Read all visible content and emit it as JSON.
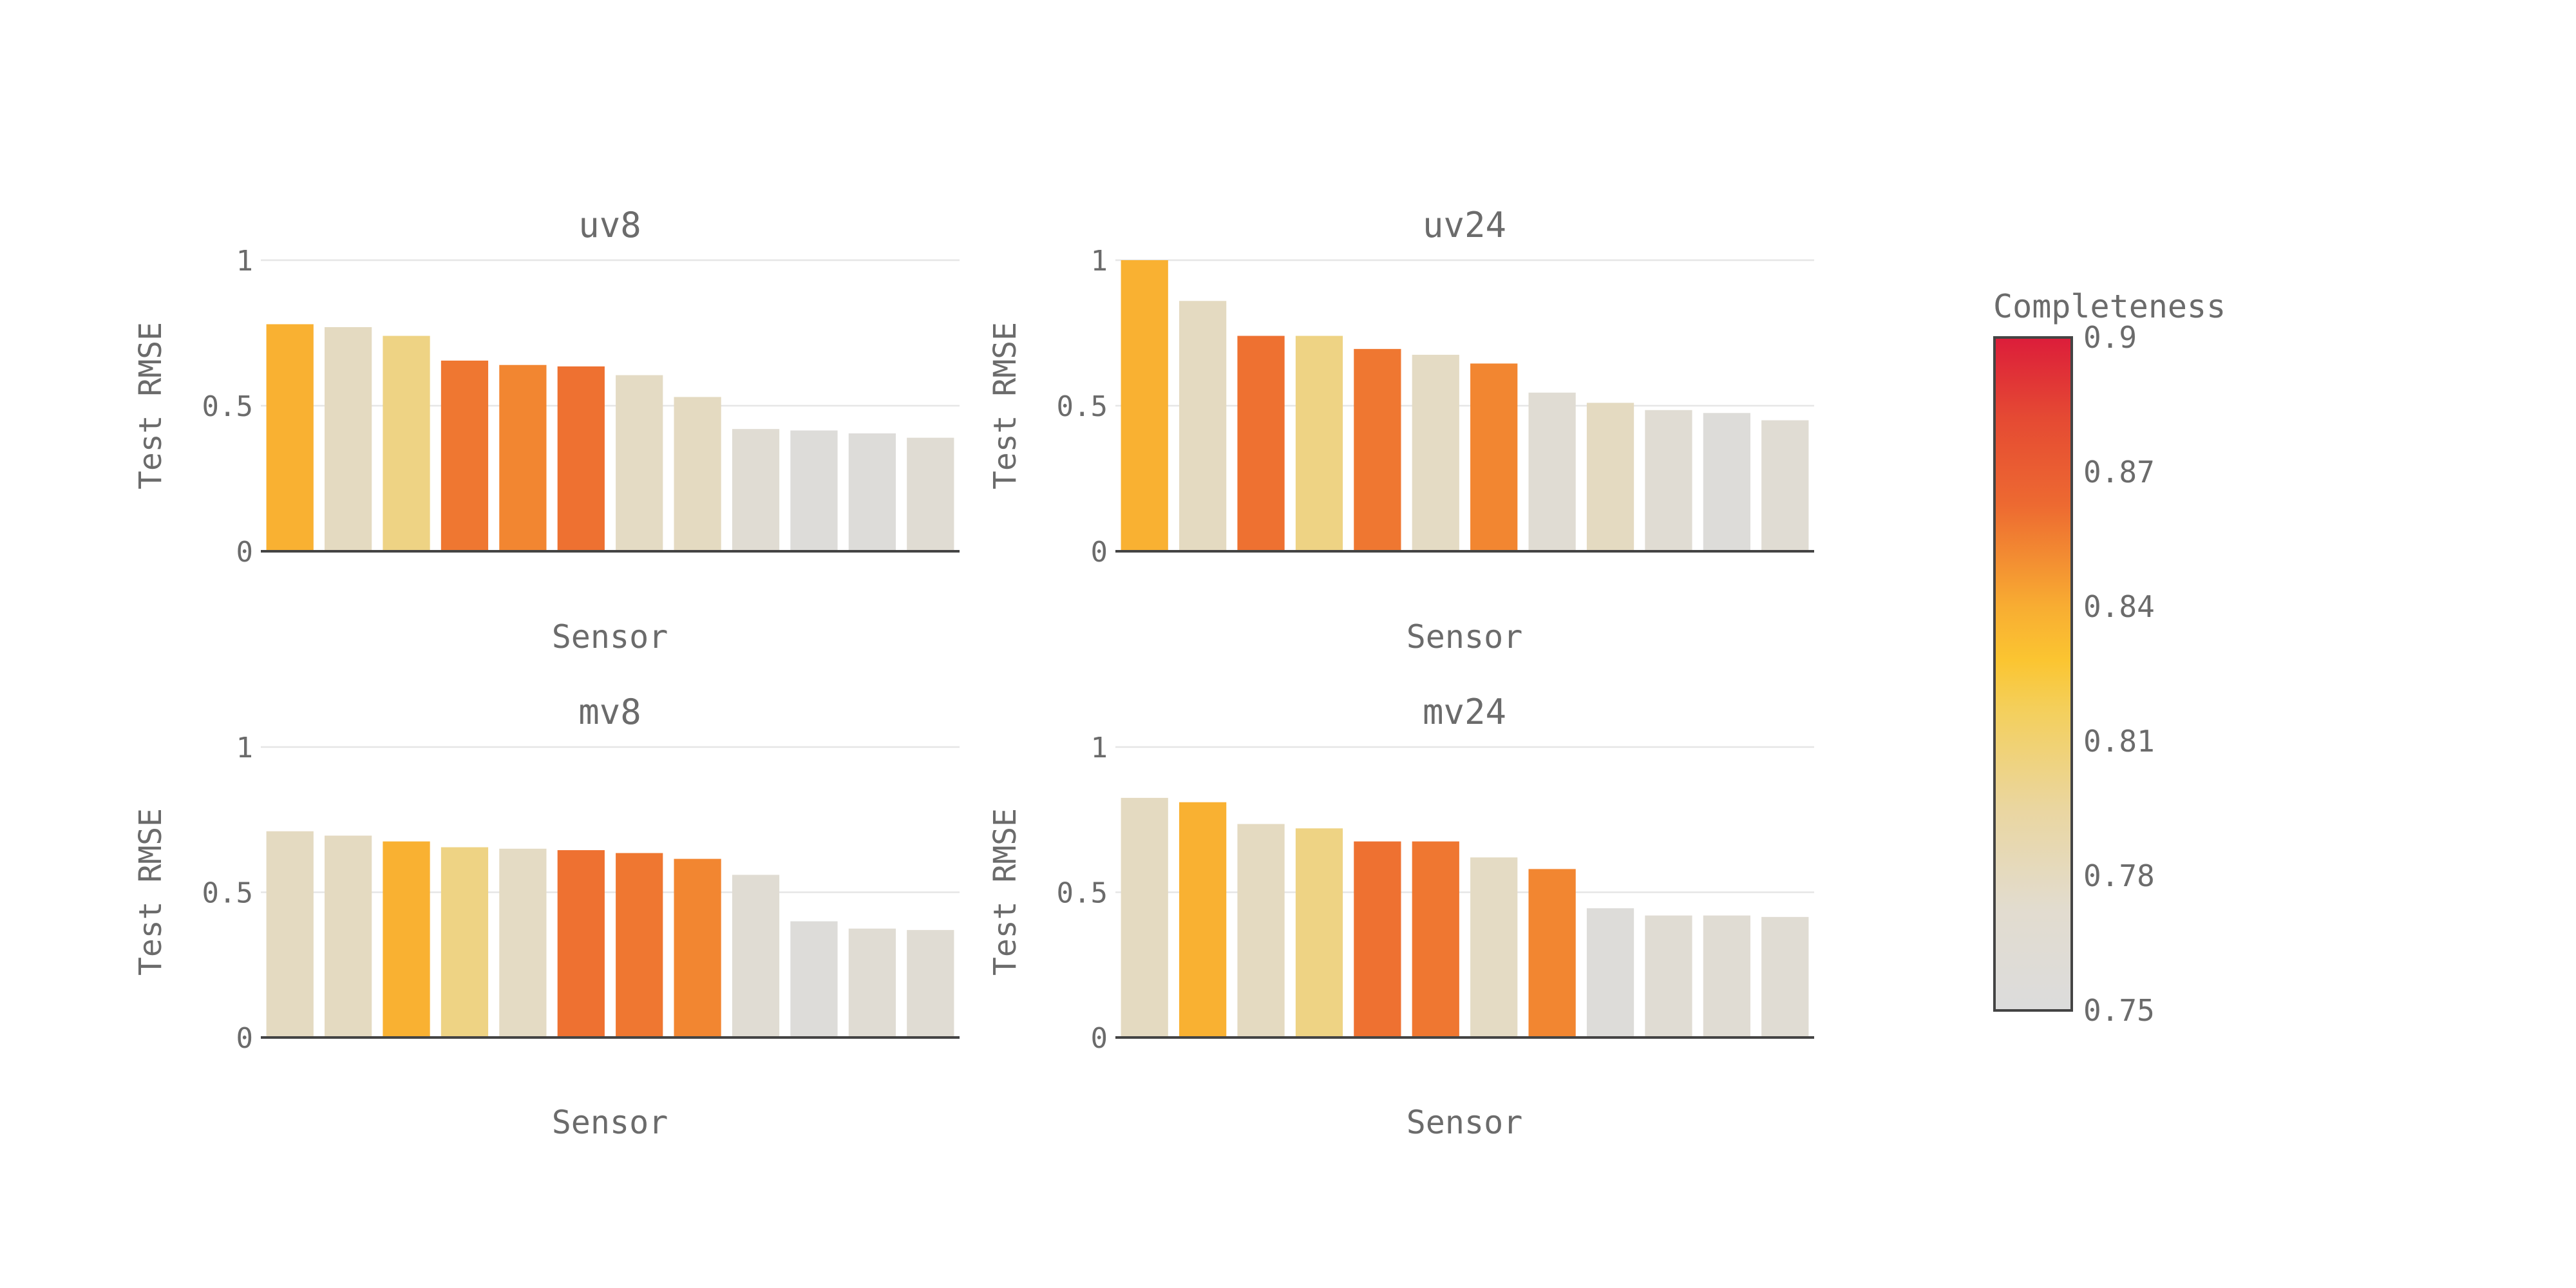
{
  "chart_data": [
    {
      "type": "bar",
      "title": "uv8",
      "xlabel": "Sensor",
      "ylabel": "Test RMSE",
      "ylim": [
        0,
        1
      ],
      "yticks": [
        0,
        0.5,
        1
      ],
      "ytick_labels": [
        "0",
        "0.5",
        "1"
      ],
      "grid": true,
      "values": [
        0.78,
        0.77,
        0.74,
        0.655,
        0.64,
        0.635,
        0.605,
        0.53,
        0.42,
        0.415,
        0.405,
        0.39
      ],
      "completeness": [
        0.838,
        0.779,
        0.804,
        0.858,
        0.853,
        0.86,
        0.778,
        0.779,
        0.765,
        0.755,
        0.755,
        0.765
      ]
    },
    {
      "type": "bar",
      "title": "uv24",
      "xlabel": "Sensor",
      "ylabel": "Test RMSE",
      "ylim": [
        0,
        1
      ],
      "yticks": [
        0,
        0.5,
        1
      ],
      "ytick_labels": [
        "0",
        "0.5",
        "1"
      ],
      "grid": true,
      "values": [
        1.0,
        0.86,
        0.74,
        0.74,
        0.695,
        0.675,
        0.645,
        0.545,
        0.51,
        0.485,
        0.475,
        0.45
      ],
      "completeness": [
        0.838,
        0.779,
        0.86,
        0.804,
        0.858,
        0.778,
        0.853,
        0.765,
        0.779,
        0.765,
        0.755,
        0.765
      ]
    },
    {
      "type": "bar",
      "title": "mv8",
      "xlabel": "Sensor",
      "ylabel": "Test RMSE",
      "ylim": [
        0,
        1
      ],
      "yticks": [
        0,
        0.5,
        1
      ],
      "ytick_labels": [
        "0",
        "0.5",
        "1"
      ],
      "grid": true,
      "values": [
        0.71,
        0.695,
        0.675,
        0.655,
        0.65,
        0.645,
        0.635,
        0.615,
        0.56,
        0.4,
        0.375,
        0.37
      ],
      "completeness": [
        0.779,
        0.779,
        0.838,
        0.804,
        0.778,
        0.86,
        0.858,
        0.853,
        0.765,
        0.755,
        0.765,
        0.765
      ]
    },
    {
      "type": "bar",
      "title": "mv24",
      "xlabel": "Sensor",
      "ylabel": "Test RMSE",
      "ylim": [
        0,
        1
      ],
      "yticks": [
        0,
        0.5,
        1
      ],
      "ytick_labels": [
        "0",
        "0.5",
        "1"
      ],
      "grid": true,
      "values": [
        0.825,
        0.81,
        0.735,
        0.72,
        0.675,
        0.675,
        0.62,
        0.58,
        0.445,
        0.42,
        0.42,
        0.415
      ],
      "completeness": [
        0.779,
        0.838,
        0.779,
        0.804,
        0.86,
        0.858,
        0.778,
        0.853,
        0.755,
        0.765,
        0.765,
        0.765
      ]
    }
  ],
  "colorbar": {
    "title": "Completeness",
    "range": [
      0.75,
      0.9
    ],
    "tick_values": [
      0.75,
      0.78,
      0.81,
      0.84,
      0.87,
      0.9
    ],
    "tick_labels": [
      "0.75",
      "0.78",
      "0.81",
      "0.84",
      "0.87",
      "0.9"
    ],
    "colorscale": [
      [
        0.0,
        "#dcdcdc"
      ],
      [
        0.15,
        "#e2dccf"
      ],
      [
        0.3,
        "#ead6a0"
      ],
      [
        0.45,
        "#f4cf5a"
      ],
      [
        0.52,
        "#fbc531"
      ],
      [
        0.6,
        "#f8ad32"
      ],
      [
        0.75,
        "#ed6a31"
      ],
      [
        0.88,
        "#e54a33"
      ],
      [
        1.0,
        "#dc1d3a"
      ]
    ]
  }
}
